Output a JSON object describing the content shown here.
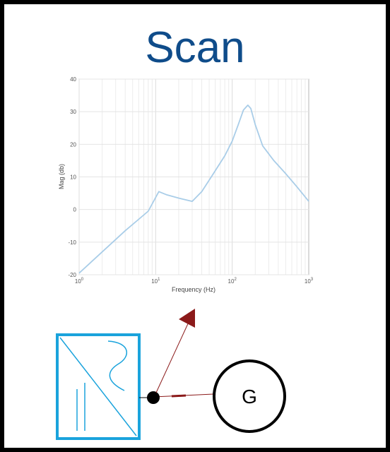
{
  "title": "Scan",
  "generator_label": "G",
  "colors": {
    "title": "#0f4c8a",
    "curve": "#a9cde8",
    "block_border": "#1aa3dc",
    "arrow": "#8b1a1a"
  },
  "chart_data": {
    "type": "line",
    "xscale": "log",
    "xlim": [
      1,
      1000
    ],
    "ylim": [
      -20,
      40
    ],
    "xlabel": "Frequency (Hz)",
    "ylabel": "Mag (db)",
    "yticks": [
      -20,
      -10,
      0,
      10,
      20,
      30,
      40
    ],
    "xticks": [
      {
        "base": "10",
        "exp": "0"
      },
      {
        "base": "10",
        "exp": "1"
      },
      {
        "base": "10",
        "exp": "2"
      },
      {
        "base": "10",
        "exp": "3"
      }
    ],
    "grid": true,
    "series": [
      {
        "x": [
          1,
          2,
          4,
          6,
          8,
          11,
          14,
          20,
          30,
          40,
          55,
          80,
          100,
          120,
          140,
          160,
          175,
          200,
          250,
          350,
          500,
          700,
          1000
        ],
        "y": [
          -19.5,
          -13,
          -6.5,
          -3,
          -0.5,
          5.5,
          4.5,
          3.5,
          2.5,
          5.5,
          10.5,
          16.5,
          21,
          26,
          30.5,
          32,
          31,
          26,
          19.5,
          15,
          11,
          7,
          2.5
        ]
      }
    ]
  }
}
